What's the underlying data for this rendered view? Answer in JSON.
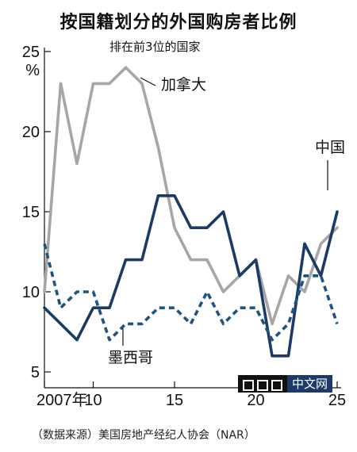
{
  "header": {
    "title": "按国籍划分的外国购房者比例",
    "subtitle": "排在前3位的国家"
  },
  "source": "（数据来源）美国房地产经纪人协会（NAR）",
  "logo": {
    "text": "中文网"
  },
  "chart_data": {
    "type": "line",
    "title": "按国籍划分的外国购房者比例",
    "subtitle": "排在前3位的国家",
    "ylabel": "%",
    "ylim": [
      5,
      25
    ],
    "xlim": [
      2007,
      2025
    ],
    "yticks": [
      5,
      10,
      15,
      20,
      25
    ],
    "ytick_labels": [
      "5",
      "10",
      "15",
      "20",
      "25"
    ],
    "xticks": [
      2007,
      2010,
      2015,
      2020,
      2025
    ],
    "xtick_labels": [
      "2007年",
      "10",
      "15",
      "20",
      "25"
    ],
    "grid": false,
    "x": [
      2007,
      2008,
      2009,
      2010,
      2011,
      2012,
      2013,
      2014,
      2015,
      2016,
      2017,
      2018,
      2019,
      2020,
      2021,
      2022,
      2023,
      2024,
      2025
    ],
    "series": [
      {
        "name": "加拿大",
        "color": "#a6a6a6",
        "style": "solid",
        "values": [
          10,
          23,
          18,
          23,
          23,
          24,
          23,
          19,
          14,
          12,
          12,
          10,
          11,
          12,
          8,
          11,
          10,
          13,
          14
        ]
      },
      {
        "name": "中国",
        "color": "#1c3a66",
        "style": "solid",
        "values": [
          9,
          8,
          7,
          9,
          9,
          12,
          12,
          16,
          16,
          14,
          14,
          15,
          11,
          12,
          6,
          6,
          13,
          11,
          15
        ]
      },
      {
        "name": "墨西哥",
        "color": "#1e5482",
        "style": "dashed",
        "values": [
          13,
          9,
          10,
          10,
          7,
          8,
          8,
          9,
          9,
          8,
          10,
          8,
          9,
          9,
          7,
          8,
          11,
          11,
          8
        ]
      }
    ],
    "annotations": [
      "加拿大",
      "中国",
      "墨西哥"
    ]
  }
}
